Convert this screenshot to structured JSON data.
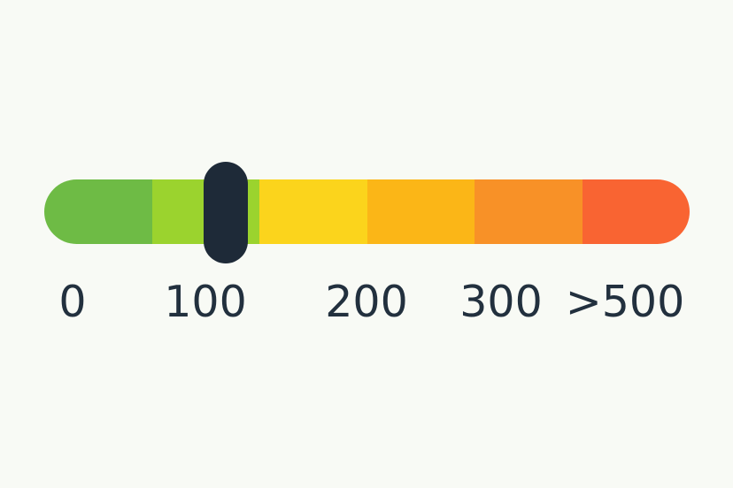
{
  "page": {
    "background_color": "#F8FAF5"
  },
  "slider": {
    "value": "100",
    "handle_color": "#1E2A38",
    "text_color": "#22303E",
    "segments": [
      {
        "color": "#6EBB45"
      },
      {
        "color": "#9BD32E"
      },
      {
        "color": "#FBD41C"
      },
      {
        "color": "#FBB617"
      },
      {
        "color": "#F89127"
      },
      {
        "color": "#F96432"
      }
    ],
    "tick_labels": [
      "0",
      "100",
      "200",
      "300",
      ">500"
    ]
  }
}
